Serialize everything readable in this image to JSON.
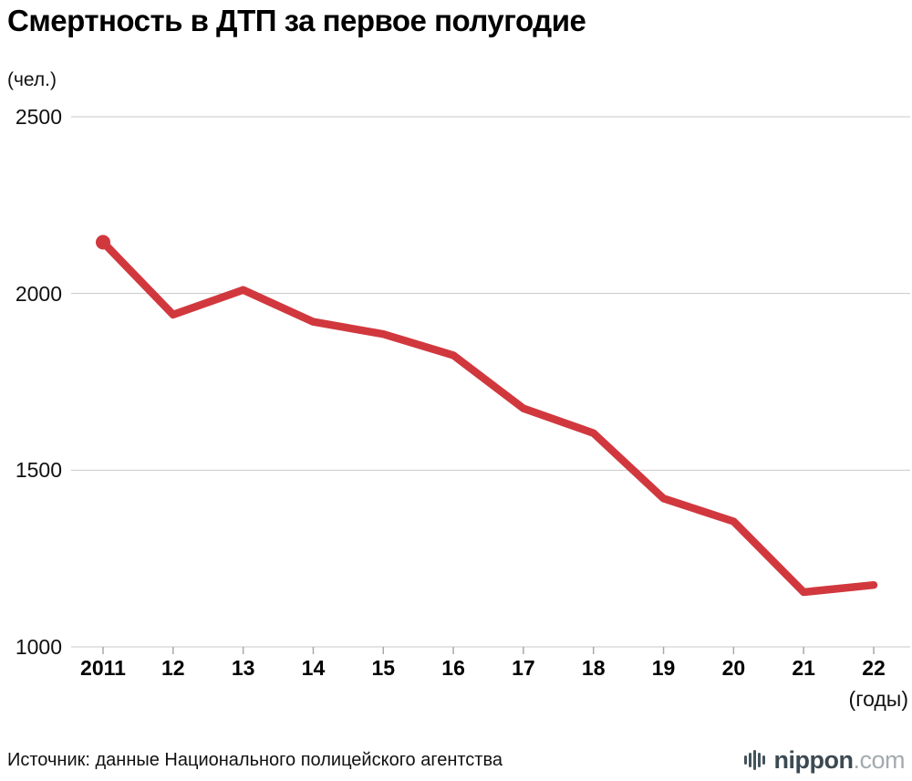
{
  "chart_data": {
    "type": "line",
    "title": "Смертность в ДТП за первое полугодие",
    "y_units": "(чел.)",
    "x_units": "(годы)",
    "categories": [
      "2011",
      "12",
      "13",
      "14",
      "15",
      "16",
      "17",
      "18",
      "19",
      "20",
      "21",
      "22"
    ],
    "values": [
      2145,
      1940,
      2010,
      1920,
      1885,
      1825,
      1675,
      1605,
      1420,
      1355,
      1155,
      1175
    ],
    "series_name": "Смертность в ДТП за первое полугодие (чел.)",
    "ylim": [
      1000,
      2500
    ],
    "yticks": [
      2500,
      2000,
      1500,
      1000
    ],
    "grid": "horizontal",
    "legend": "none",
    "line_color": "#d1383e"
  },
  "footer": {
    "source": "Источник: данные Национального полицейского агентства",
    "logo_main": "nippon",
    "logo_suffix": ".com"
  }
}
